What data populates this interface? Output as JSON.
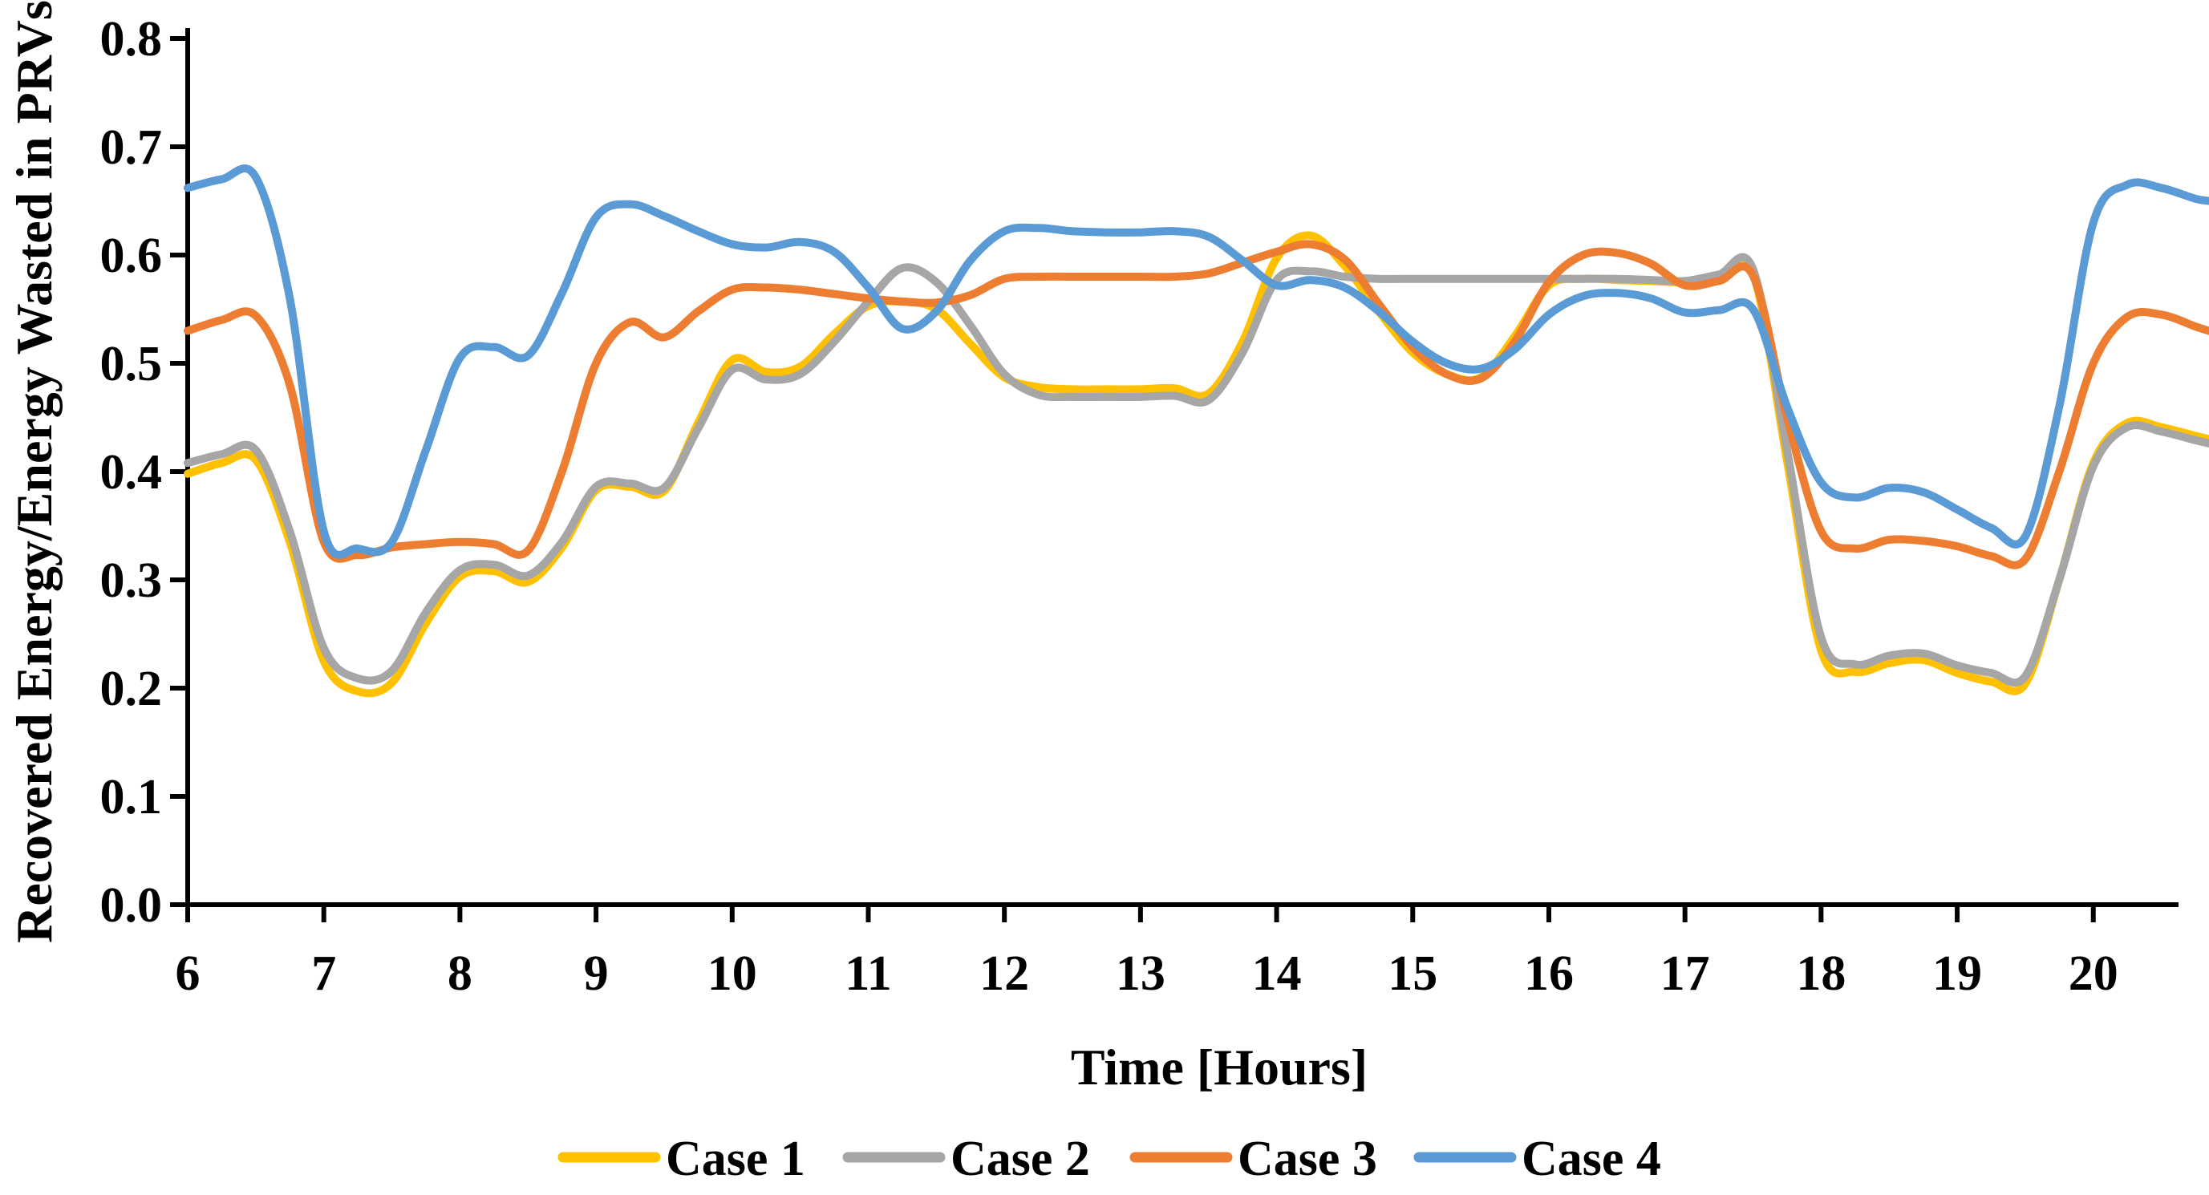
{
  "chart_data": {
    "type": "line",
    "title": "",
    "xlabel": "Time [Hours]",
    "ylabel": "Recovered Energy/Energy Wasted in PRVs",
    "xlim": [
      6,
      20.85
    ],
    "ylim": [
      0,
      0.8
    ],
    "grid": false,
    "legend_position": "bottom",
    "axis_color": "#000000",
    "xticks": [
      6,
      7,
      8,
      9,
      10,
      11,
      12,
      13,
      14,
      15,
      16,
      17,
      18,
      19,
      20
    ],
    "ytick_values": [
      0.0,
      0.1,
      0.2,
      0.3,
      0.4,
      0.5,
      0.6,
      0.7,
      0.8
    ],
    "ytick_labels": [
      "0.0",
      "0.1",
      "0.2",
      "0.3",
      "0.4",
      "0.5",
      "0.6",
      "0.7",
      "0.8"
    ],
    "x": [
      6.0,
      6.25,
      6.5,
      6.75,
      7.0,
      7.25,
      7.5,
      7.75,
      8.0,
      8.25,
      8.5,
      8.75,
      9.0,
      9.25,
      9.5,
      9.75,
      10.0,
      10.25,
      10.5,
      10.75,
      11.0,
      11.25,
      11.5,
      11.75,
      12.0,
      12.25,
      12.5,
      12.75,
      13.0,
      13.25,
      13.5,
      13.75,
      14.0,
      14.25,
      14.5,
      14.75,
      15.0,
      15.25,
      15.5,
      15.75,
      16.0,
      16.25,
      16.5,
      16.75,
      17.0,
      17.25,
      17.5,
      17.75,
      18.0,
      18.25,
      18.5,
      18.75,
      19.0,
      19.25,
      19.5,
      19.75,
      20.0,
      20.25,
      20.5,
      20.75,
      20.85
    ],
    "series": [
      {
        "name": "Case 1",
        "color": "#FFC000",
        "values": [
          0.398,
          0.408,
          0.411,
          0.335,
          0.225,
          0.197,
          0.205,
          0.26,
          0.303,
          0.308,
          0.298,
          0.33,
          0.383,
          0.386,
          0.382,
          0.445,
          0.503,
          0.492,
          0.497,
          0.527,
          0.553,
          0.557,
          0.55,
          0.518,
          0.487,
          0.478,
          0.476,
          0.476,
          0.476,
          0.477,
          0.472,
          0.52,
          0.597,
          0.618,
          0.59,
          0.548,
          0.51,
          0.49,
          0.487,
          0.525,
          0.572,
          0.578,
          0.577,
          0.576,
          0.575,
          0.58,
          0.583,
          0.41,
          0.235,
          0.215,
          0.223,
          0.226,
          0.214,
          0.206,
          0.204,
          0.3,
          0.408,
          0.445,
          0.441,
          0.433,
          0.43
        ]
      },
      {
        "name": "Case 2",
        "color": "#A6A6A6",
        "values": [
          0.408,
          0.416,
          0.42,
          0.345,
          0.237,
          0.209,
          0.216,
          0.27,
          0.309,
          0.314,
          0.304,
          0.335,
          0.386,
          0.389,
          0.385,
          0.44,
          0.494,
          0.485,
          0.49,
          0.52,
          0.557,
          0.588,
          0.575,
          0.535,
          0.49,
          0.471,
          0.469,
          0.469,
          0.469,
          0.47,
          0.466,
          0.51,
          0.577,
          0.585,
          0.58,
          0.578,
          0.578,
          0.578,
          0.578,
          0.578,
          0.578,
          0.578,
          0.578,
          0.577,
          0.576,
          0.582,
          0.587,
          0.42,
          0.247,
          0.222,
          0.23,
          0.232,
          0.221,
          0.214,
          0.211,
          0.3,
          0.405,
          0.441,
          0.437,
          0.429,
          0.426
        ]
      },
      {
        "name": "Case 3",
        "color": "#ED7D31",
        "values": [
          0.53,
          0.54,
          0.544,
          0.48,
          0.335,
          0.323,
          0.33,
          0.333,
          0.335,
          0.333,
          0.327,
          0.4,
          0.5,
          0.538,
          0.524,
          0.548,
          0.568,
          0.57,
          0.568,
          0.564,
          0.56,
          0.557,
          0.556,
          0.563,
          0.578,
          0.58,
          0.58,
          0.58,
          0.58,
          0.58,
          0.583,
          0.593,
          0.603,
          0.61,
          0.596,
          0.555,
          0.515,
          0.49,
          0.486,
          0.52,
          0.575,
          0.6,
          0.602,
          0.592,
          0.572,
          0.576,
          0.581,
          0.45,
          0.345,
          0.329,
          0.337,
          0.336,
          0.331,
          0.322,
          0.319,
          0.4,
          0.5,
          0.543,
          0.545,
          0.534,
          0.53
        ]
      },
      {
        "name": "Case 4",
        "color": "#5B9BD5",
        "values": [
          0.662,
          0.67,
          0.672,
          0.56,
          0.345,
          0.329,
          0.335,
          0.42,
          0.505,
          0.515,
          0.507,
          0.565,
          0.635,
          0.647,
          0.636,
          0.622,
          0.61,
          0.607,
          0.612,
          0.603,
          0.57,
          0.532,
          0.548,
          0.595,
          0.622,
          0.625,
          0.622,
          0.621,
          0.621,
          0.622,
          0.617,
          0.595,
          0.572,
          0.577,
          0.57,
          0.548,
          0.52,
          0.5,
          0.495,
          0.513,
          0.545,
          0.562,
          0.565,
          0.56,
          0.547,
          0.549,
          0.55,
          0.46,
          0.39,
          0.376,
          0.385,
          0.381,
          0.365,
          0.348,
          0.34,
          0.46,
          0.63,
          0.665,
          0.662,
          0.652,
          0.65
        ]
      }
    ]
  }
}
